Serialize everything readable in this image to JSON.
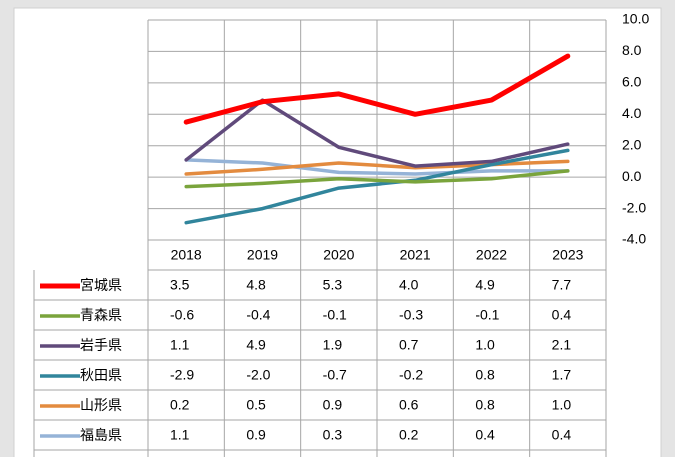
{
  "chart_data": {
    "type": "line",
    "categories": [
      "2018",
      "2019",
      "2020",
      "2021",
      "2022",
      "2023"
    ],
    "series": [
      {
        "name": "宮城県",
        "color": "#ff0000",
        "values": [
          3.5,
          4.8,
          5.3,
          4.0,
          4.9,
          7.7
        ],
        "value_labels": [
          "3.5",
          "4.8",
          "5.3",
          "4.0",
          "4.9",
          "7.7"
        ]
      },
      {
        "name": "青森県",
        "color": "#7aa43c",
        "values": [
          -0.6,
          -0.4,
          -0.1,
          -0.3,
          -0.1,
          0.4
        ],
        "value_labels": [
          "-0.6",
          "-0.4",
          "-0.1",
          "-0.3",
          "-0.1",
          "0.4"
        ]
      },
      {
        "name": "岩手県",
        "color": "#604a7b",
        "values": [
          1.1,
          4.9,
          1.9,
          0.7,
          1.0,
          2.1
        ],
        "value_labels": [
          "1.1",
          "4.9",
          "1.9",
          "0.7",
          "1.0",
          "2.1"
        ]
      },
      {
        "name": "秋田県",
        "color": "#31859c",
        "values": [
          -2.9,
          -2.0,
          -0.7,
          -0.2,
          0.8,
          1.7
        ],
        "value_labels": [
          "-2.9",
          "-2.0",
          "-0.7",
          "-0.2",
          "0.8",
          "1.7"
        ]
      },
      {
        "name": "山形県",
        "color": "#e38b3f",
        "values": [
          0.2,
          0.5,
          0.9,
          0.6,
          0.8,
          1.0
        ],
        "value_labels": [
          "0.2",
          "0.5",
          "0.9",
          "0.6",
          "0.8",
          "1.0"
        ]
      },
      {
        "name": "福島県",
        "color": "#95b3d7",
        "values": [
          1.1,
          0.9,
          0.3,
          0.2,
          0.4,
          0.4
        ],
        "value_labels": [
          "1.1",
          "0.9",
          "0.3",
          "0.2",
          "0.4",
          "0.4"
        ]
      }
    ],
    "ylim": [
      -4,
      10
    ],
    "yticks": [
      {
        "value": -4,
        "label": "-4.0"
      },
      {
        "value": -2,
        "label": "-2.0"
      },
      {
        "value": 0,
        "label": "0.0"
      },
      {
        "value": 2,
        "label": "2.0"
      },
      {
        "value": 4,
        "label": "4.0"
      },
      {
        "value": 6,
        "label": "6.0"
      },
      {
        "value": 8,
        "label": "8.0"
      },
      {
        "value": 10,
        "label": "10.0"
      }
    ],
    "grid": true
  }
}
